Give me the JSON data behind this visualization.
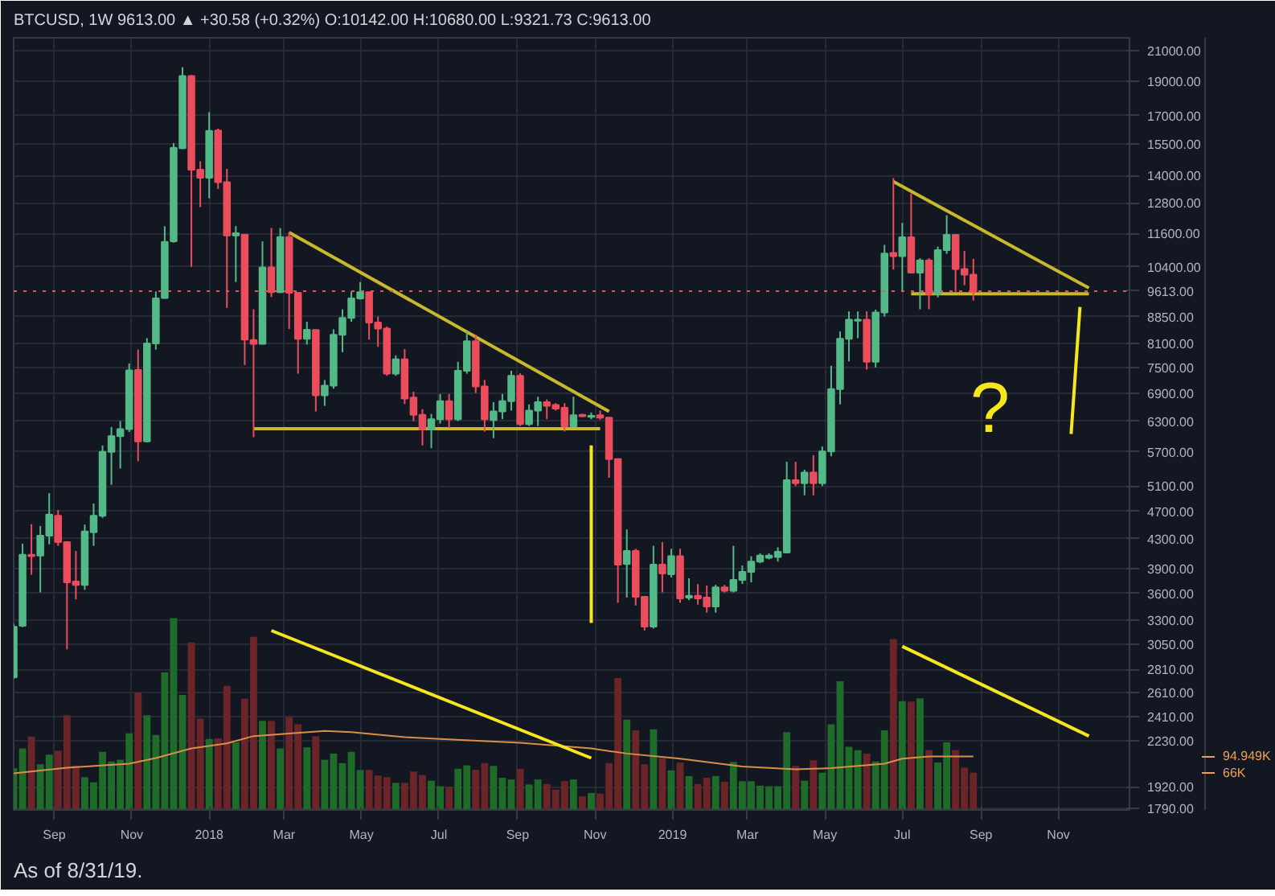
{
  "chart_data": {
    "type": "candlestick",
    "title": "BTCUSD, 1W 9613.00 ▲ +30.58 (+0.32%) O:10142.00 H:10680.00 L:9321.73 C:9613.00",
    "annotations": [
      "As of 8/31/19.",
      "?"
    ],
    "x": [
      "2017-07-31",
      "2017-08-07",
      "2017-08-14",
      "2017-08-21",
      "2017-08-28",
      "2017-09-04",
      "2017-09-11",
      "2017-09-18",
      "2017-09-25",
      "2017-10-02",
      "2017-10-09",
      "2017-10-16",
      "2017-10-23",
      "2017-10-30",
      "2017-11-06",
      "2017-11-13",
      "2017-11-20",
      "2017-11-27",
      "2017-12-04",
      "2017-12-11",
      "2017-12-18",
      "2017-12-25",
      "2018-01-01",
      "2018-01-08",
      "2018-01-15",
      "2018-01-22",
      "2018-01-29",
      "2018-02-05",
      "2018-02-12",
      "2018-02-19",
      "2018-02-26",
      "2018-03-05",
      "2018-03-12",
      "2018-03-19",
      "2018-03-26",
      "2018-04-02",
      "2018-04-09",
      "2018-04-16",
      "2018-04-23",
      "2018-04-30",
      "2018-05-07",
      "2018-05-14",
      "2018-05-21",
      "2018-05-28",
      "2018-06-04",
      "2018-06-11",
      "2018-06-18",
      "2018-06-25",
      "2018-07-02",
      "2018-07-09",
      "2018-07-16",
      "2018-07-23",
      "2018-07-30",
      "2018-08-06",
      "2018-08-13",
      "2018-08-20",
      "2018-08-27",
      "2018-09-03",
      "2018-09-10",
      "2018-09-17",
      "2018-09-24",
      "2018-10-01",
      "2018-10-08",
      "2018-10-15",
      "2018-10-22",
      "2018-10-29",
      "2018-11-05",
      "2018-11-12",
      "2018-11-19",
      "2018-11-26",
      "2018-12-03",
      "2018-12-10",
      "2018-12-17",
      "2018-12-24",
      "2018-12-31",
      "2019-01-07",
      "2019-01-14",
      "2019-01-21",
      "2019-01-28",
      "2019-02-04",
      "2019-02-11",
      "2019-02-18",
      "2019-02-25",
      "2019-03-04",
      "2019-03-11",
      "2019-03-18",
      "2019-03-25",
      "2019-04-01",
      "2019-04-08",
      "2019-04-15",
      "2019-04-22",
      "2019-04-29",
      "2019-05-06",
      "2019-05-13",
      "2019-05-20",
      "2019-05-27",
      "2019-06-03",
      "2019-06-10",
      "2019-06-17",
      "2019-06-24",
      "2019-07-01",
      "2019-07-08",
      "2019-07-15",
      "2019-07-22",
      "2019-07-29",
      "2019-08-05",
      "2019-08-12",
      "2019-08-19",
      "2019-08-26"
    ],
    "series": [
      {
        "ohlc": [
          [
            2740,
            3262,
            2725,
            3229
          ],
          [
            3240,
            4230,
            3225,
            4080
          ],
          [
            4080,
            4506,
            3823,
            4060
          ],
          [
            4070,
            4480,
            3610,
            4340
          ],
          [
            4340,
            4985,
            4220,
            4650
          ],
          [
            4630,
            4720,
            4200,
            4250
          ],
          [
            4250,
            4250,
            3000,
            3730
          ],
          [
            3740,
            4130,
            3530,
            3700
          ],
          [
            3700,
            4500,
            3640,
            4400
          ],
          [
            4390,
            4820,
            4200,
            4630
          ],
          [
            4630,
            5820,
            4600,
            5700
          ],
          [
            5700,
            6180,
            5120,
            6000
          ],
          [
            6000,
            6300,
            5400,
            6140
          ],
          [
            6140,
            7600,
            6080,
            7430
          ],
          [
            7440,
            7950,
            5530,
            5900
          ],
          [
            5900,
            8250,
            5880,
            8110
          ],
          [
            8110,
            9600,
            7950,
            9390
          ],
          [
            9400,
            11870,
            9380,
            11280
          ],
          [
            11300,
            15550,
            11250,
            15320
          ],
          [
            15300,
            19900,
            15250,
            19340
          ],
          [
            19340,
            19400,
            10400,
            14260
          ],
          [
            14260,
            14660,
            12630,
            13900
          ],
          [
            13900,
            17200,
            13000,
            16180
          ],
          [
            16200,
            16300,
            13400,
            13700
          ],
          [
            13700,
            14300,
            9100,
            11520
          ],
          [
            11520,
            11880,
            9900,
            11600
          ],
          [
            11550,
            11550,
            7560,
            8210
          ],
          [
            8200,
            9060,
            5980,
            8100
          ],
          [
            8100,
            11300,
            8080,
            10380
          ],
          [
            10380,
            11800,
            9430,
            9580
          ],
          [
            9580,
            11800,
            9550,
            11460
          ],
          [
            11460,
            11650,
            8500,
            9560
          ],
          [
            9560,
            9560,
            7350,
            8230
          ],
          [
            8230,
            8700,
            8080,
            8480
          ],
          [
            8470,
            8470,
            6500,
            6850
          ],
          [
            6850,
            7200,
            6620,
            7070
          ],
          [
            7070,
            8490,
            7000,
            8340
          ],
          [
            8340,
            9060,
            7880,
            8810
          ],
          [
            8810,
            9600,
            8700,
            9390
          ],
          [
            9390,
            9900,
            9350,
            9580
          ],
          [
            9580,
            9580,
            8210,
            8680
          ],
          [
            8680,
            8850,
            8020,
            8510
          ],
          [
            8510,
            8570,
            7300,
            7350
          ],
          [
            7350,
            7800,
            7300,
            7700
          ],
          [
            7700,
            7960,
            6660,
            6780
          ],
          [
            6800,
            6930,
            6300,
            6430
          ],
          [
            6430,
            6550,
            5820,
            6130
          ],
          [
            6130,
            6450,
            5770,
            6340
          ],
          [
            6340,
            6880,
            6250,
            6720
          ],
          [
            6720,
            6880,
            6160,
            6340
          ],
          [
            6340,
            7640,
            6300,
            7420
          ],
          [
            7420,
            8430,
            7350,
            8170
          ],
          [
            8170,
            8350,
            6900,
            7050
          ],
          [
            7050,
            7200,
            6090,
            6340
          ],
          [
            6320,
            6700,
            5960,
            6500
          ],
          [
            6500,
            6880,
            6340,
            6720
          ],
          [
            6720,
            7420,
            6520,
            7300
          ],
          [
            7300,
            7360,
            6200,
            6240
          ],
          [
            6240,
            6650,
            6200,
            6520
          ],
          [
            6520,
            6820,
            6200,
            6700
          ],
          [
            6700,
            6760,
            6340,
            6620
          ],
          [
            6640,
            6680,
            6520,
            6560
          ],
          [
            6580,
            6680,
            6090,
            6190
          ],
          [
            6190,
            6820,
            6180,
            6420
          ],
          [
            6430,
            6450,
            6380,
            6400
          ],
          [
            6390,
            6480,
            6340,
            6410
          ],
          [
            6420,
            6520,
            6330,
            6370
          ],
          [
            6370,
            6380,
            5240,
            5570
          ],
          [
            5570,
            5570,
            3490,
            3950
          ],
          [
            3960,
            4430,
            3550,
            4130
          ],
          [
            4130,
            4160,
            3460,
            3560
          ],
          [
            3560,
            3560,
            3190,
            3230
          ],
          [
            3230,
            4200,
            3210,
            3950
          ],
          [
            3950,
            4250,
            3610,
            3840
          ],
          [
            3830,
            4160,
            3790,
            4060
          ],
          [
            4060,
            4160,
            3490,
            3540
          ],
          [
            3550,
            3780,
            3520,
            3570
          ],
          [
            3570,
            3710,
            3470,
            3540
          ],
          [
            3550,
            3690,
            3380,
            3450
          ],
          [
            3450,
            3700,
            3380,
            3670
          ],
          [
            3670,
            3700,
            3610,
            3630
          ],
          [
            3630,
            4200,
            3610,
            3760
          ],
          [
            3760,
            3940,
            3710,
            3860
          ],
          [
            3860,
            4060,
            3730,
            3990
          ],
          [
            3990,
            4100,
            3970,
            4070
          ],
          [
            4040,
            4100,
            4020,
            4070
          ],
          [
            4050,
            4180,
            3990,
            4120
          ],
          [
            4110,
            5520,
            4100,
            5200
          ],
          [
            5200,
            5520,
            5100,
            5150
          ],
          [
            5150,
            5380,
            4950,
            5330
          ],
          [
            5330,
            5640,
            4950,
            5150
          ],
          [
            5150,
            5800,
            5100,
            5710
          ],
          [
            5710,
            7540,
            5620,
            6990
          ],
          [
            6990,
            8430,
            6650,
            8230
          ],
          [
            8230,
            9000,
            7650,
            8760
          ],
          [
            8730,
            9000,
            8250,
            8760
          ],
          [
            8760,
            9000,
            7450,
            7640
          ],
          [
            7640,
            9050,
            7500,
            8970
          ],
          [
            8970,
            11170,
            8850,
            10860
          ],
          [
            10880,
            13880,
            10310,
            10770
          ],
          [
            10770,
            12000,
            9590,
            11450
          ],
          [
            11450,
            13200,
            10190,
            10210
          ],
          [
            10210,
            10700,
            9060,
            10620
          ],
          [
            10620,
            10700,
            9060,
            9520
          ],
          [
            9520,
            11110,
            9420,
            10980
          ],
          [
            10980,
            12300,
            10850,
            11540
          ],
          [
            11540,
            11560,
            9590,
            10330
          ],
          [
            10330,
            10950,
            9800,
            10142
          ],
          [
            10142,
            10680,
            9321.73,
            9613
          ]
        ],
        "colors": [
          "#53b987",
          "#53b987",
          "#eb4d5c",
          "#53b987",
          "#53b987",
          "#eb4d5c",
          "#eb4d5c",
          "#eb4d5c",
          "#53b987",
          "#53b987",
          "#53b987",
          "#53b987",
          "#53b987",
          "#53b987",
          "#eb4d5c",
          "#53b987",
          "#53b987",
          "#53b987",
          "#53b987",
          "#53b987",
          "#eb4d5c",
          "#eb4d5c",
          "#53b987",
          "#eb4d5c",
          "#eb4d5c",
          "#53b987",
          "#eb4d5c",
          "#eb4d5c",
          "#53b987",
          "#eb4d5c",
          "#53b987",
          "#eb4d5c",
          "#eb4d5c",
          "#53b987",
          "#eb4d5c",
          "#53b987",
          "#53b987",
          "#53b987",
          "#53b987",
          "#53b987",
          "#eb4d5c",
          "#eb4d5c",
          "#eb4d5c",
          "#53b987",
          "#eb4d5c",
          "#eb4d5c",
          "#eb4d5c",
          "#53b987",
          "#53b987",
          "#eb4d5c",
          "#53b987",
          "#53b987",
          "#eb4d5c",
          "#eb4d5c",
          "#53b987",
          "#53b987",
          "#53b987",
          "#eb4d5c",
          "#53b987",
          "#53b987",
          "#eb4d5c",
          "#eb4d5c",
          "#eb4d5c",
          "#53b987",
          "#eb4d5c",
          "#53b987",
          "#eb4d5c",
          "#eb4d5c",
          "#eb4d5c",
          "#53b987",
          "#eb4d5c",
          "#eb4d5c",
          "#53b987",
          "#eb4d5c",
          "#53b987",
          "#eb4d5c",
          "#53b987",
          "#eb4d5c",
          "#eb4d5c",
          "#53b987",
          "#eb4d5c",
          "#53b987",
          "#53b987",
          "#53b987",
          "#53b987",
          "#53b987",
          "#53b987",
          "#53b987",
          "#eb4d5c",
          "#53b987",
          "#eb4d5c",
          "#53b987",
          "#53b987",
          "#53b987",
          "#53b987",
          "#53b987",
          "#eb4d5c",
          "#53b987",
          "#53b987",
          "#eb4d5c",
          "#53b987",
          "#eb4d5c",
          "#53b987",
          "#eb4d5c",
          "#53b987",
          "#53b987",
          "#eb4d5c",
          "#eb4d5c",
          "#eb4d5c"
        ]
      },
      {
        "type": "bar",
        "axis": "y2",
        "values": [
          74,
          109,
          130,
          81,
          98,
          105,
          168,
          79,
          58,
          49,
          103,
          86,
          89,
          136,
          208,
          168,
          133,
          244,
          340,
          204,
          297,
          162,
          126,
          127,
          220,
          120,
          197,
          307,
          158,
          158,
          109,
          165,
          152,
          111,
          131,
          89,
          100,
          83,
          103,
          71,
          71,
          61,
          58,
          48,
          48,
          68,
          62,
          52,
          42,
          41,
          73,
          79,
          71,
          83,
          78,
          57,
          54,
          73,
          45,
          54,
          46,
          36,
          51,
          54,
          24,
          30,
          29,
          83,
          234,
          160,
          141,
          81,
          143,
          92,
          70,
          84,
          60,
          46,
          57,
          60,
          50,
          85,
          51,
          51,
          43,
          42,
          42,
          138,
          78,
          52,
          88,
          66,
          152,
          228,
          112,
          106,
          100,
          86,
          141,
          303,
          193,
          192,
          198,
          106,
          84,
          120,
          106,
          75,
          66
        ],
        "colors": [
          "#1e6b2a",
          "#1e6b2a",
          "#6b2528",
          "#1e6b2a",
          "#1e6b2a",
          "#6b2528",
          "#6b2528",
          "#6b2528",
          "#1e6b2a",
          "#1e6b2a",
          "#1e6b2a",
          "#1e6b2a",
          "#1e6b2a",
          "#1e6b2a",
          "#6b2528",
          "#1e6b2a",
          "#1e6b2a",
          "#1e6b2a",
          "#1e6b2a",
          "#1e6b2a",
          "#6b2528",
          "#6b2528",
          "#1e6b2a",
          "#6b2528",
          "#6b2528",
          "#1e6b2a",
          "#6b2528",
          "#6b2528",
          "#1e6b2a",
          "#6b2528",
          "#1e6b2a",
          "#6b2528",
          "#6b2528",
          "#1e6b2a",
          "#6b2528",
          "#1e6b2a",
          "#1e6b2a",
          "#1e6b2a",
          "#1e6b2a",
          "#1e6b2a",
          "#6b2528",
          "#6b2528",
          "#6b2528",
          "#1e6b2a",
          "#6b2528",
          "#6b2528",
          "#6b2528",
          "#1e6b2a",
          "#1e6b2a",
          "#6b2528",
          "#1e6b2a",
          "#1e6b2a",
          "#6b2528",
          "#6b2528",
          "#1e6b2a",
          "#1e6b2a",
          "#1e6b2a",
          "#6b2528",
          "#1e6b2a",
          "#1e6b2a",
          "#6b2528",
          "#6b2528",
          "#6b2528",
          "#1e6b2a",
          "#6b2528",
          "#1e6b2a",
          "#6b2528",
          "#6b2528",
          "#6b2528",
          "#1e6b2a",
          "#6b2528",
          "#6b2528",
          "#1e6b2a",
          "#6b2528",
          "#1e6b2a",
          "#6b2528",
          "#1e6b2a",
          "#6b2528",
          "#6b2528",
          "#1e6b2a",
          "#6b2528",
          "#1e6b2a",
          "#1e6b2a",
          "#1e6b2a",
          "#1e6b2a",
          "#1e6b2a",
          "#1e6b2a",
          "#1e6b2a",
          "#6b2528",
          "#1e6b2a",
          "#6b2528",
          "#1e6b2a",
          "#1e6b2a",
          "#1e6b2a",
          "#1e6b2a",
          "#1e6b2a",
          "#6b2528",
          "#1e6b2a",
          "#1e6b2a",
          "#6b2528",
          "#1e6b2a",
          "#6b2528",
          "#1e6b2a",
          "#6b2528",
          "#1e6b2a",
          "#1e6b2a",
          "#6b2528",
          "#6b2528",
          "#6b2528"
        ]
      },
      {
        "type": "line",
        "axis": "y2",
        "color": "#d98e4a",
        "x": [
          "2017-07-31",
          "2017-09-11",
          "2017-10-30",
          "2017-11-20",
          "2017-12-18",
          "2018-01-15",
          "2018-02-05",
          "2018-04-02",
          "2018-04-23",
          "2018-06-04",
          "2018-07-02",
          "2018-09-03",
          "2018-10-29",
          "2018-11-26",
          "2019-01-07",
          "2019-02-25",
          "2019-04-08",
          "2019-05-06",
          "2019-06-17",
          "2019-07-01",
          "2019-07-22",
          "2019-08-26"
        ],
        "values": [
          65,
          75,
          82,
          92,
          109,
          118,
          131,
          140,
          138,
          129,
          126,
          119,
          109,
          100,
          91,
          77,
          72,
          74,
          82,
          91,
          95,
          95
        ]
      },
      {
        "type": "line",
        "color": "#c9b82b",
        "x": [
          "2018-03-05",
          "2018-11-12"
        ],
        "values": [
          11630,
          6500
        ]
      },
      {
        "type": "line",
        "color": "#c9b82b",
        "x": [
          "2018-02-05",
          "2018-11-05"
        ],
        "values": [
          6145,
          6145
        ]
      },
      {
        "type": "line",
        "color": "#c9b82b",
        "x": [
          "2019-06-24",
          "2019-11-25"
        ],
        "values": [
          13720,
          9710
        ]
      },
      {
        "type": "line",
        "color": "#c9b82b",
        "x": [
          "2019-07-08",
          "2019-11-25"
        ],
        "values": [
          9530,
          9530
        ]
      },
      {
        "type": "line",
        "color": "#f5e61e",
        "x": [
          "2018-10-29",
          "2018-10-29"
        ],
        "values": [
          5820,
          3270
        ]
      },
      {
        "type": "line",
        "color": "#f5e61e",
        "x": [
          "2019-11-18",
          "2019-11-11"
        ],
        "values": [
          9130,
          6040
        ]
      },
      {
        "type": "line",
        "axis": "y2",
        "color": "#f5e61e",
        "x": [
          "2018-02-19",
          "2018-10-29"
        ],
        "values": [
          318,
          92
        ]
      },
      {
        "type": "line",
        "axis": "y2",
        "color": "#f5e61e",
        "x": [
          "2019-07-01",
          "2019-11-25"
        ],
        "values": [
          290,
          131
        ]
      }
    ],
    "xlim": [
      "2017-07-31",
      "2019-12-27"
    ],
    "xticks": [
      {
        "value": "2017-09-01",
        "label": "Sep"
      },
      {
        "value": "2017-11-01",
        "label": "Nov"
      },
      {
        "value": "2018-01-01",
        "label": "2018"
      },
      {
        "value": "2018-03-01",
        "label": "Mar"
      },
      {
        "value": "2018-05-01",
        "label": "May"
      },
      {
        "value": "2018-07-01",
        "label": "Jul"
      },
      {
        "value": "2018-09-01",
        "label": "Sep"
      },
      {
        "value": "2018-11-01",
        "label": "Nov"
      },
      {
        "value": "2019-01-01",
        "label": "2019"
      },
      {
        "value": "2019-03-01",
        "label": "Mar"
      },
      {
        "value": "2019-05-01",
        "label": "May"
      },
      {
        "value": "2019-07-01",
        "label": "Jul"
      },
      {
        "value": "2019-09-01",
        "label": "Sep"
      },
      {
        "value": "2019-11-01",
        "label": "Nov"
      }
    ],
    "log": true,
    "ylim": [
      1780,
      21900
    ],
    "yticks": [
      {
        "value": 21000,
        "label": "21000.00"
      },
      {
        "value": 19000,
        "label": "19000.00"
      },
      {
        "value": 17000,
        "label": "17000.00"
      },
      {
        "value": 15500,
        "label": "15500.00"
      },
      {
        "value": 14000,
        "label": "14000.00"
      },
      {
        "value": 12800,
        "label": "12800.00"
      },
      {
        "value": 11600,
        "label": "11600.00"
      },
      {
        "value": 10400,
        "label": "10400.00"
      },
      {
        "value": 8850,
        "label": "8850.00"
      },
      {
        "value": 8100,
        "label": "8100.00"
      },
      {
        "value": 7500,
        "label": "7500.00"
      },
      {
        "value": 6900,
        "label": "6900.00"
      },
      {
        "value": 6300,
        "label": "6300.00"
      },
      {
        "value": 5700,
        "label": "5700.00"
      },
      {
        "value": 5100,
        "label": "5100.00"
      },
      {
        "value": 4700,
        "label": "4700.00"
      },
      {
        "value": 4300,
        "label": "4300.00"
      },
      {
        "value": 3900,
        "label": "3900.00"
      },
      {
        "value": 3600,
        "label": "3600.00"
      },
      {
        "value": 3300,
        "label": "3300.00"
      },
      {
        "value": 3050,
        "label": "3050.00"
      },
      {
        "value": 2810,
        "label": "2810.00"
      },
      {
        "value": 2610,
        "label": "2610.00"
      },
      {
        "value": 2410,
        "label": "2410.00"
      },
      {
        "value": 2230,
        "label": "2230.00"
      },
      {
        "value": 1920,
        "label": "1920.00"
      },
      {
        "value": 1790,
        "label": "1790.00"
      }
    ],
    "y2lim": [
      0,
      1369
    ],
    "y2ticks": [
      {
        "value": 94.949,
        "label": "94.949K"
      },
      {
        "value": 66,
        "label": "66K"
      }
    ],
    "ref_lines": [
      {
        "axis": "y",
        "value": 9613,
        "label": "9613.00",
        "color": "#ef5350",
        "line_style": "dotted"
      }
    ],
    "grid": true
  }
}
